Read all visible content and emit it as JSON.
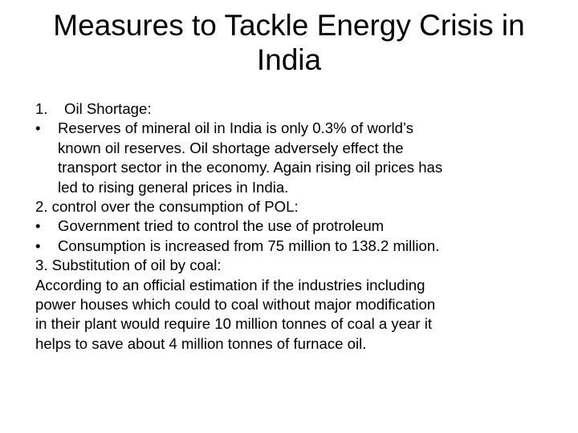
{
  "slide": {
    "title_line1": "Measures to Tackle Energy Crisis in",
    "title_line2": "India",
    "section1": {
      "number": "1.",
      "heading": "Oil Shortage:",
      "bullet": "•",
      "bullet_lines": [
        "Reserves of mineral oil in India is only 0.3% of world’s",
        "known oil reserves. Oil shortage adversely effect the",
        "transport sector in the economy. Again rising oil prices has",
        "led to rising general prices in India."
      ]
    },
    "section2": {
      "heading": "2. control over the consumption of POL:",
      "bullet": "•",
      "bullets": [
        "Government tried to control the use of protroleum",
        "Consumption is increased from 75 million to 138.2 million."
      ]
    },
    "section3": {
      "heading": "3. Substitution of oil by coal:",
      "paragraph_lines": [
        "According to an  official estimation  if the industries including",
        "power houses which could to coal without major modification",
        "in their plant would require 10 million tonnes of coal a year it",
        "helps to save about 4 million tonnes of furnace oil."
      ]
    }
  }
}
